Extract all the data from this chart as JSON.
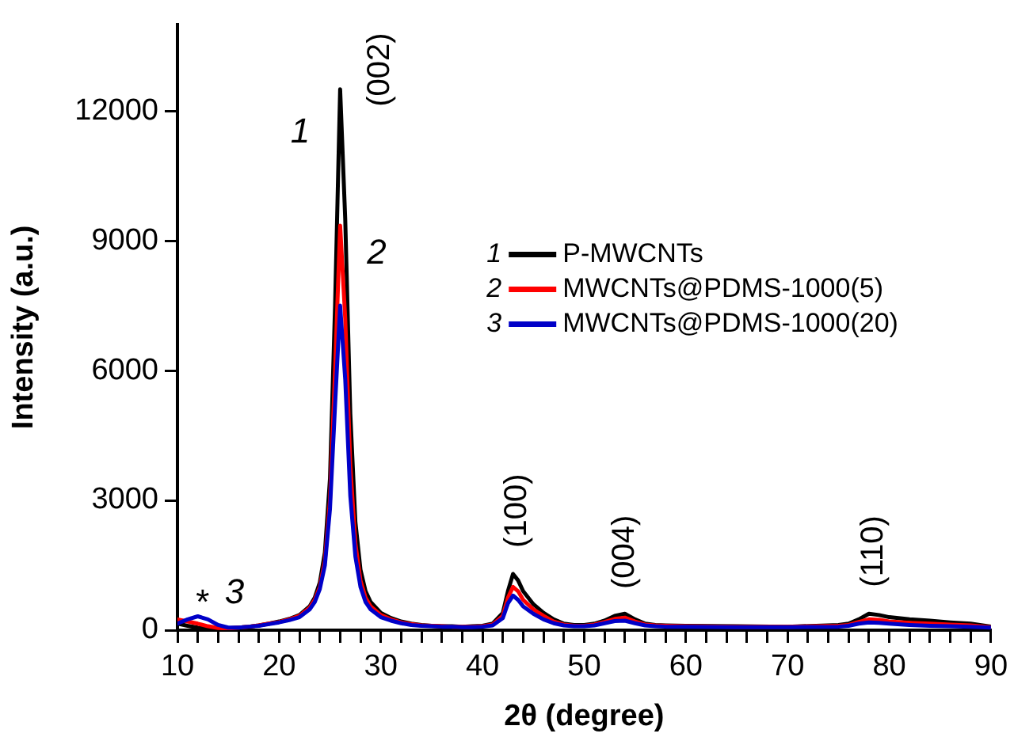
{
  "chart_data": {
    "type": "line",
    "xlabel": "2θ (degree)",
    "ylabel": "Intensity (a.u.)",
    "x": [
      10,
      11,
      12,
      13,
      14,
      15,
      16,
      17,
      18,
      19,
      20,
      21,
      22,
      23,
      23.5,
      24,
      24.5,
      25,
      25.5,
      26,
      26.5,
      27,
      27.5,
      28,
      28.5,
      29,
      30,
      31,
      32,
      33,
      34,
      35,
      36,
      37,
      38,
      39,
      40,
      41,
      42,
      42.5,
      43,
      43.5,
      44,
      45,
      46,
      47,
      48,
      49,
      50,
      51,
      52,
      53,
      54,
      55,
      56,
      57,
      58,
      60,
      65,
      70,
      75,
      76,
      77,
      78,
      79,
      80,
      82,
      84,
      86,
      88,
      90
    ],
    "series": [
      {
        "name": "P-MWCNTs",
        "color": "#000000",
        "values": [
          150,
          100,
          60,
          40,
          30,
          40,
          60,
          80,
          110,
          150,
          200,
          260,
          350,
          550,
          750,
          1100,
          1800,
          3500,
          7500,
          12500,
          9500,
          5000,
          2500,
          1400,
          900,
          650,
          400,
          280,
          200,
          150,
          120,
          100,
          90,
          90,
          80,
          90,
          100,
          150,
          400,
          900,
          1300,
          1150,
          900,
          600,
          400,
          250,
          150,
          120,
          120,
          150,
          220,
          330,
          380,
          250,
          150,
          120,
          110,
          100,
          90,
          80,
          120,
          150,
          250,
          380,
          350,
          300,
          250,
          220,
          180,
          150,
          80
        ]
      },
      {
        "name": "MWCNTs@PDMS-1000(5)",
        "color": "#ff0000",
        "values": [
          250,
          200,
          150,
          90,
          50,
          40,
          60,
          80,
          110,
          150,
          190,
          250,
          330,
          520,
          700,
          1000,
          1600,
          3000,
          6000,
          9350,
          7200,
          3800,
          2000,
          1150,
          750,
          550,
          350,
          250,
          180,
          140,
          110,
          100,
          90,
          80,
          80,
          80,
          90,
          130,
          330,
          750,
          1000,
          900,
          700,
          480,
          330,
          200,
          130,
          100,
          100,
          130,
          190,
          260,
          290,
          200,
          130,
          110,
          100,
          90,
          80,
          80,
          100,
          120,
          190,
          250,
          240,
          200,
          170,
          150,
          130,
          110,
          70
        ]
      },
      {
        "name": "MWCNTs@PDMS-1000(20)",
        "color": "#0000c8",
        "values": [
          150,
          250,
          320,
          250,
          120,
          60,
          60,
          80,
          100,
          140,
          180,
          230,
          300,
          480,
          650,
          950,
          1500,
          2800,
          5200,
          7500,
          5800,
          3100,
          1700,
          1000,
          650,
          480,
          300,
          220,
          160,
          120,
          100,
          90,
          80,
          80,
          70,
          70,
          80,
          110,
          280,
          620,
          800,
          700,
          550,
          380,
          250,
          160,
          110,
          90,
          90,
          110,
          160,
          210,
          220,
          160,
          110,
          90,
          80,
          80,
          70,
          70,
          80,
          100,
          150,
          180,
          170,
          150,
          120,
          100,
          90,
          80,
          60
        ]
      }
    ],
    "xlim": [
      10,
      90
    ],
    "ylim": [
      0,
      14000
    ],
    "xticks": [
      10,
      {
        "value": 12,
        "label": null
      },
      {
        "value": 14,
        "label": null
      },
      {
        "value": 16,
        "label": null
      },
      {
        "value": 18,
        "label": null
      },
      20,
      {
        "value": 22,
        "label": null
      },
      {
        "value": 24,
        "label": null
      },
      {
        "value": 26,
        "label": null
      },
      {
        "value": 28,
        "label": null
      },
      30,
      {
        "value": 32,
        "label": null
      },
      {
        "value": 34,
        "label": null
      },
      {
        "value": 36,
        "label": null
      },
      {
        "value": 38,
        "label": null
      },
      40,
      {
        "value": 42,
        "label": null
      },
      {
        "value": 44,
        "label": null
      },
      {
        "value": 46,
        "label": null
      },
      {
        "value": 48,
        "label": null
      },
      50,
      {
        "value": 52,
        "label": null
      },
      {
        "value": 54,
        "label": null
      },
      {
        "value": 56,
        "label": null
      },
      {
        "value": 58,
        "label": null
      },
      60,
      {
        "value": 62,
        "label": null
      },
      {
        "value": 64,
        "label": null
      },
      {
        "value": 66,
        "label": null
      },
      {
        "value": 68,
        "label": null
      },
      70,
      {
        "value": 72,
        "label": null
      },
      {
        "value": 74,
        "label": null
      },
      {
        "value": 76,
        "label": null
      },
      {
        "value": 78,
        "label": null
      },
      80,
      {
        "value": 82,
        "label": null
      },
      {
        "value": 84,
        "label": null
      },
      {
        "value": 86,
        "label": null
      },
      {
        "value": 88,
        "label": null
      },
      90
    ],
    "yticks": [
      0,
      3000,
      6000,
      9000,
      12000
    ],
    "annotations": [
      "(002)",
      "(100)",
      "(004)",
      "(110)",
      "1",
      "2",
      "3",
      "*"
    ],
    "grid": false,
    "legend": "right",
    "marker": "none",
    "line_style": "solid"
  }
}
